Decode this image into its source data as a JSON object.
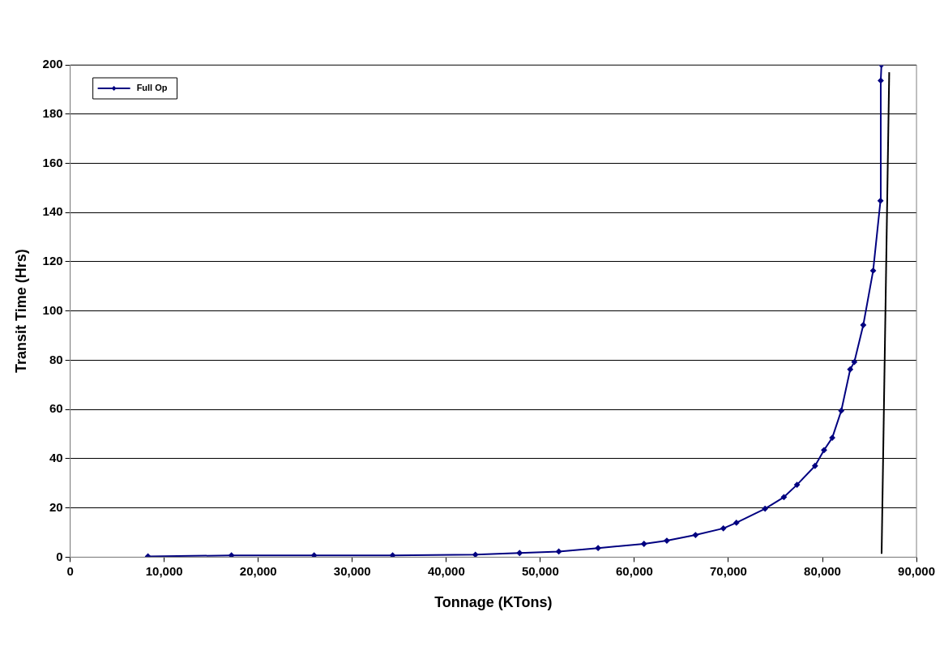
{
  "chart_data": {
    "type": "line",
    "xlabel": "Tonnage (KTons)",
    "ylabel": "Transit Time (Hrs)",
    "xlim": [
      0,
      90000
    ],
    "xticks": [
      {
        "value": 0,
        "label": "0"
      },
      {
        "value": 10000,
        "label": "10,000"
      },
      {
        "value": 20000,
        "label": "20,000"
      },
      {
        "value": 30000,
        "label": "30,000"
      },
      {
        "value": 40000,
        "label": "40,000"
      },
      {
        "value": 50000,
        "label": "50,000"
      },
      {
        "value": 60000,
        "label": "60,000"
      },
      {
        "value": 70000,
        "label": "70,000"
      },
      {
        "value": 80000,
        "label": "80,000"
      },
      {
        "value": 90000,
        "label": "90,000"
      }
    ],
    "ylim": [
      0,
      200
    ],
    "yticks": [
      0,
      20,
      40,
      60,
      80,
      100,
      120,
      140,
      160,
      180,
      200
    ],
    "grid": "y",
    "legend": "top left",
    "marker": "diamond",
    "line_style": "solid",
    "series": [
      {
        "name": "Full Op",
        "color": "#000080",
        "x": [
          8270,
          17150,
          25940,
          34290,
          43090,
          47790,
          51960,
          56140,
          61020,
          63450,
          66500,
          69460,
          70850,
          73900,
          75900,
          77290,
          79210,
          80170,
          81040,
          82000,
          82950,
          83390,
          84340,
          85390,
          86170,
          86200,
          86270
        ],
        "values": [
          0.3,
          0.7,
          0.7,
          0.7,
          1.0,
          1.7,
          2.3,
          3.7,
          5.4,
          6.7,
          9.0,
          11.7,
          14.0,
          19.7,
          24.4,
          29.4,
          37.1,
          43.5,
          48.5,
          59.5,
          76.3,
          79.3,
          94.3,
          116.4,
          144.8,
          193.6,
          200
        ]
      },
      {
        "color": "#000000",
        "marker": "none",
        "x": [
          86290,
          87100
        ],
        "values": [
          1.4,
          197
        ]
      }
    ]
  }
}
